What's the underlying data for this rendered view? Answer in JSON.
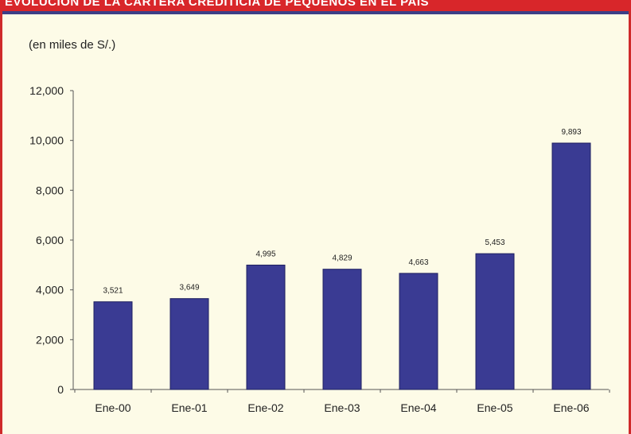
{
  "header": {
    "title": "EVOLUCIÓN DE LA CARTERA CREDITICIA DE PEQUEÑOS EN EL PAÍS"
  },
  "colors": {
    "bar": "#3a3b93",
    "frame": "#d8262a",
    "panel": "#fdfbe7",
    "panel_top_rule": "#3c3f86"
  },
  "chart_data": {
    "type": "bar",
    "unit_label": "(en miles de S/.)",
    "categories": [
      "Ene-00",
      "Ene-01",
      "Ene-02",
      "Ene-03",
      "Ene-04",
      "Ene-05",
      "Ene-06"
    ],
    "values": [
      3521,
      3649,
      4995,
      4829,
      4663,
      5453,
      9893
    ],
    "value_labels": [
      "3,521",
      "3,649",
      "4,995",
      "4,829",
      "4,663",
      "5,453",
      "9,893"
    ],
    "ylim": [
      0,
      12000
    ],
    "yticks": [
      0,
      2000,
      4000,
      6000,
      8000,
      10000,
      12000
    ],
    "ytick_labels": [
      "0",
      "2,000",
      "4,000",
      "6,000",
      "8,000",
      "10,000",
      "12,000"
    ],
    "grid": false,
    "legend": "none"
  }
}
